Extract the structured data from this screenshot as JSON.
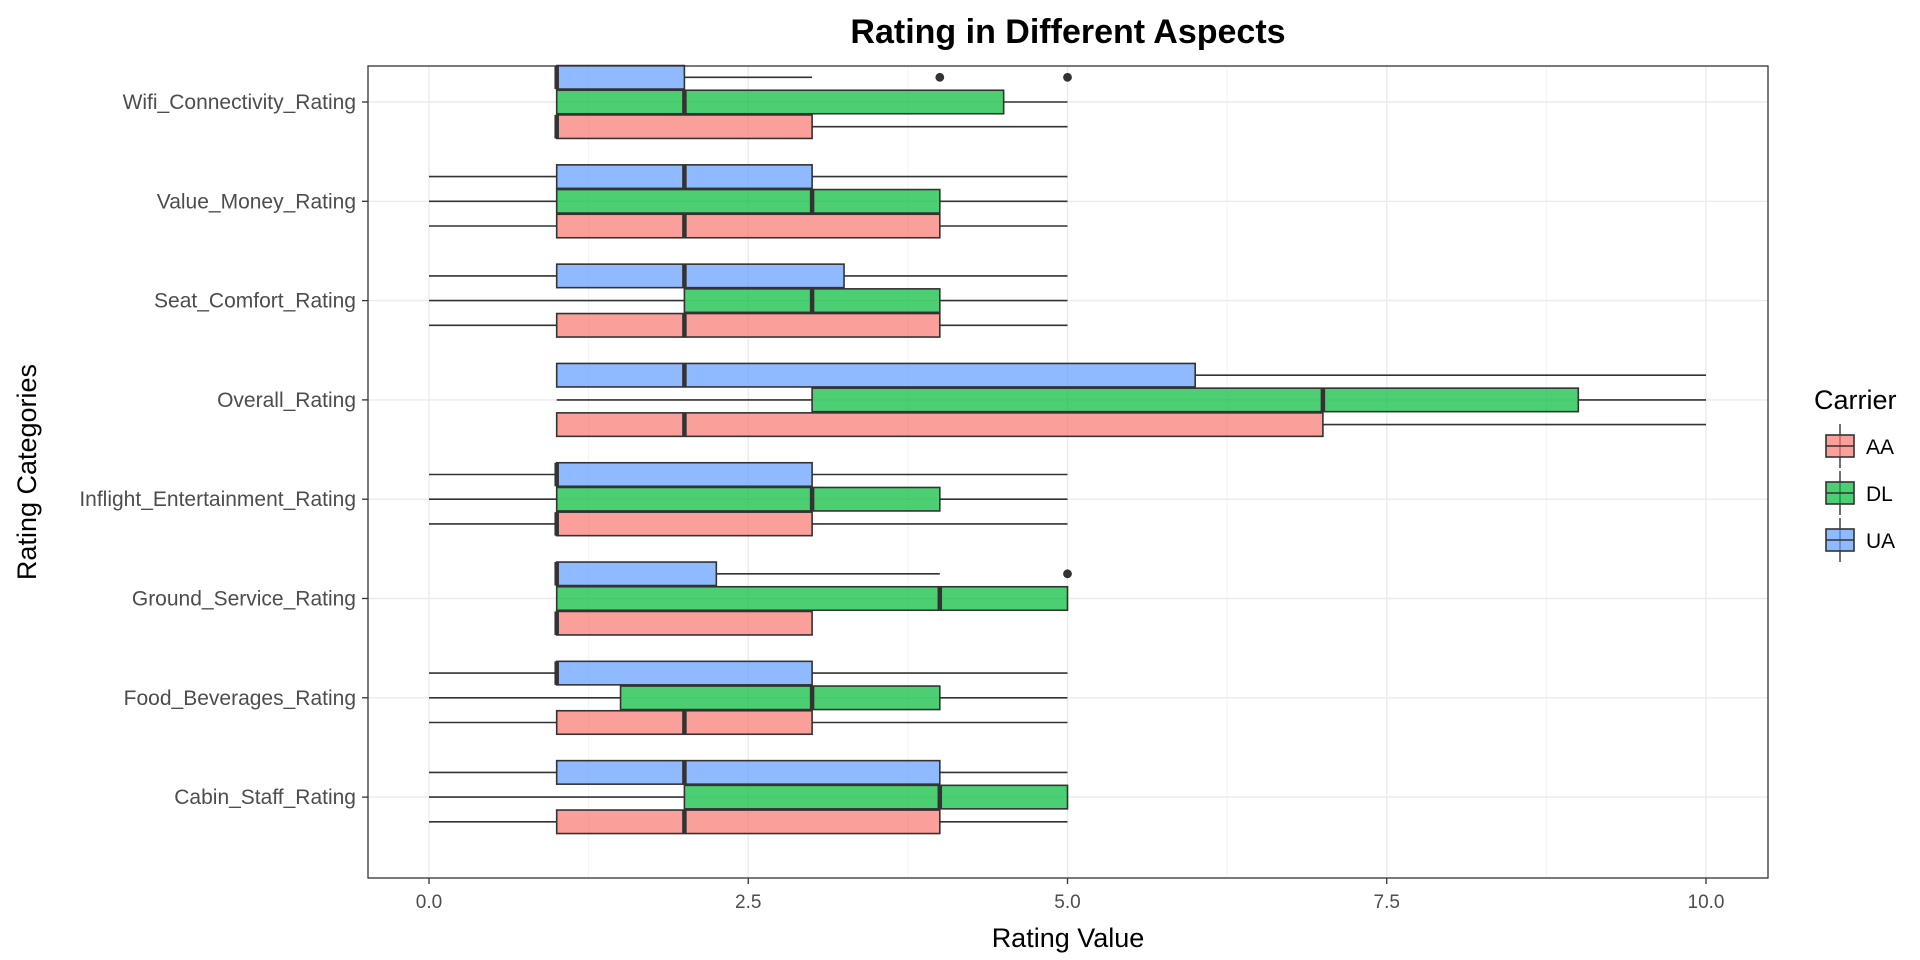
{
  "chart_data": {
    "type": "boxplot",
    "orientation": "horizontal",
    "title": "Rating in Different Aspects",
    "xlabel": "Rating Value",
    "ylabel": "Rating Categories",
    "xlim": [
      0,
      10
    ],
    "x_ticks": [
      "0.0",
      "2.5",
      "5.0",
      "7.5",
      "10.0"
    ],
    "x_tick_values": [
      0,
      2.5,
      5,
      7.5,
      10
    ],
    "grid": true,
    "legend": {
      "title": "Carrier",
      "placement": "right",
      "entries": [
        {
          "label": "AA",
          "color": "#F8766D"
        },
        {
          "label": "DL",
          "color": "#00BA38"
        },
        {
          "label": "UA",
          "color": "#619CFF"
        }
      ]
    },
    "categories": [
      "Wifi_Connectivity_Rating",
      "Value_Money_Rating",
      "Seat_Comfort_Rating",
      "Overall_Rating",
      "Inflight_Entertainment_Rating",
      "Ground_Service_Rating",
      "Food_Beverages_Rating",
      "Cabin_Staff_Rating"
    ],
    "series": [
      {
        "name": "AA",
        "color": "#F8766D",
        "boxes": [
          {
            "min": 1,
            "q1": 1,
            "median": 1,
            "q3": 3,
            "max": 5,
            "outliers": []
          },
          {
            "min": 0,
            "q1": 1,
            "median": 2,
            "q3": 4,
            "max": 5,
            "outliers": []
          },
          {
            "min": 0,
            "q1": 1,
            "median": 2,
            "q3": 4,
            "max": 5,
            "outliers": []
          },
          {
            "min": 1,
            "q1": 1,
            "median": 2,
            "q3": 7,
            "max": 10,
            "outliers": []
          },
          {
            "min": 0,
            "q1": 1,
            "median": 1,
            "q3": 3,
            "max": 5,
            "outliers": []
          },
          {
            "min": 1,
            "q1": 1,
            "median": 1,
            "q3": 3,
            "max": 3,
            "outliers": []
          },
          {
            "min": 0,
            "q1": 1,
            "median": 2,
            "q3": 3,
            "max": 5,
            "outliers": []
          },
          {
            "min": 0,
            "q1": 1,
            "median": 2,
            "q3": 4,
            "max": 5,
            "outliers": []
          }
        ]
      },
      {
        "name": "DL",
        "color": "#00BA38",
        "boxes": [
          {
            "min": 1,
            "q1": 1,
            "median": 2,
            "q3": 4.5,
            "max": 5,
            "outliers": []
          },
          {
            "min": 0,
            "q1": 1,
            "median": 3,
            "q3": 4,
            "max": 5,
            "outliers": []
          },
          {
            "min": 0,
            "q1": 2,
            "median": 3,
            "q3": 4,
            "max": 5,
            "outliers": []
          },
          {
            "min": 1,
            "q1": 3,
            "median": 7,
            "q3": 9,
            "max": 10,
            "outliers": []
          },
          {
            "min": 0,
            "q1": 1,
            "median": 3,
            "q3": 4,
            "max": 5,
            "outliers": []
          },
          {
            "min": 1,
            "q1": 1,
            "median": 4,
            "q3": 5,
            "max": 5,
            "outliers": []
          },
          {
            "min": 0,
            "q1": 1.5,
            "median": 3,
            "q3": 4,
            "max": 5,
            "outliers": []
          },
          {
            "min": 0,
            "q1": 2,
            "median": 4,
            "q3": 5,
            "max": 5,
            "outliers": []
          }
        ]
      },
      {
        "name": "UA",
        "color": "#619CFF",
        "boxes": [
          {
            "min": 1,
            "q1": 1,
            "median": 1,
            "q3": 2,
            "max": 3,
            "outliers": [
              4,
              5
            ]
          },
          {
            "min": 0,
            "q1": 1,
            "median": 2,
            "q3": 3,
            "max": 5,
            "outliers": []
          },
          {
            "min": 0,
            "q1": 1,
            "median": 2,
            "q3": 3.25,
            "max": 5,
            "outliers": []
          },
          {
            "min": 1,
            "q1": 1,
            "median": 2,
            "q3": 6,
            "max": 10,
            "outliers": []
          },
          {
            "min": 0,
            "q1": 1,
            "median": 1,
            "q3": 3,
            "max": 5,
            "outliers": []
          },
          {
            "min": 1,
            "q1": 1,
            "median": 1,
            "q3": 2.25,
            "max": 4,
            "outliers": [
              5
            ]
          },
          {
            "min": 0,
            "q1": 1,
            "median": 1,
            "q3": 3,
            "max": 5,
            "outliers": []
          },
          {
            "min": 0,
            "q1": 1,
            "median": 2,
            "q3": 4,
            "max": 5,
            "outliers": []
          }
        ]
      }
    ]
  }
}
